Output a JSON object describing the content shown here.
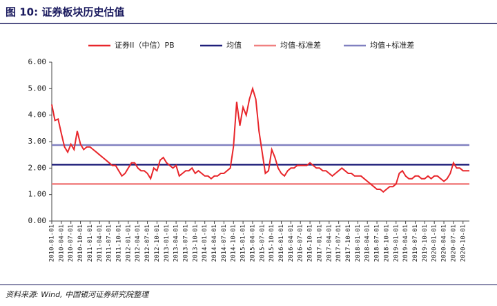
{
  "chart_data": {
    "type": "line",
    "title": "图 10: 证券板块历史估值",
    "source": "资料来源: Wind, 中国银河证券研究院整理",
    "categories": [
      "2010-01-01",
      null,
      null,
      "2010-04-01",
      null,
      null,
      "2010-07-01",
      null,
      null,
      "2010-10-01",
      null,
      null,
      "2011-01-01",
      null,
      null,
      "2011-04-01",
      null,
      null,
      "2011-07-01",
      null,
      null,
      "2011-10-01",
      null,
      null,
      "2012-01-01",
      null,
      null,
      "2012-04-01",
      null,
      null,
      "2012-07-01",
      null,
      null,
      "2012-10-01",
      null,
      null,
      "2013-01-01",
      null,
      null,
      "2013-04-01",
      null,
      null,
      "2013-07-01",
      null,
      null,
      "2013-10-01",
      null,
      null,
      "2014-01-01",
      null,
      null,
      "2014-04-01",
      null,
      null,
      "2014-07-01",
      null,
      null,
      "2014-10-01",
      null,
      null,
      "2015-01-01",
      null,
      null,
      "2015-04-01",
      null,
      null,
      "2015-07-01",
      null,
      null,
      "2015-10-01",
      null,
      null,
      "2016-01-01",
      null,
      null,
      "2016-04-01",
      null,
      null,
      "2016-07-01",
      null,
      null,
      "2016-10-01",
      null,
      null,
      "2017-01-01",
      null,
      null,
      "2017-04-01",
      null,
      null,
      "2017-07-01",
      null,
      null,
      "2017-10-01",
      null,
      null,
      "2018-01-01",
      null,
      null,
      "2018-04-01",
      null,
      null,
      "2018-07-01",
      null,
      null,
      "2018-10-01",
      null,
      null,
      "2019-01-01",
      null,
      null,
      "2019-04-01",
      null,
      null,
      "2019-07-01",
      null,
      null,
      "2019-10-01",
      null,
      null,
      "2020-01-01",
      null,
      null,
      "2020-04-01",
      null,
      null,
      "2020-07-01",
      null,
      null,
      "2020-10-01",
      null,
      null
    ],
    "series": [
      {
        "name": "证券II（中信）PB",
        "color": "#e8262b",
        "values": [
          4.4,
          3.8,
          3.85,
          3.3,
          2.8,
          2.6,
          2.9,
          2.7,
          3.4,
          2.9,
          2.7,
          2.8,
          2.8,
          2.7,
          2.6,
          2.5,
          2.4,
          2.3,
          2.2,
          2.1,
          2.1,
          1.9,
          1.7,
          1.8,
          2.0,
          2.2,
          2.2,
          2.0,
          1.9,
          1.9,
          1.8,
          1.6,
          2.0,
          1.9,
          2.3,
          2.4,
          2.2,
          2.1,
          2.0,
          2.1,
          1.7,
          1.8,
          1.9,
          1.9,
          2.0,
          1.8,
          1.9,
          1.8,
          1.7,
          1.7,
          1.6,
          1.7,
          1.7,
          1.8,
          1.8,
          1.9,
          2.0,
          2.8,
          4.5,
          3.6,
          4.3,
          4.0,
          4.6,
          5.0,
          4.6,
          3.4,
          2.6,
          1.8,
          1.9,
          2.7,
          2.4,
          2.0,
          1.8,
          1.7,
          1.9,
          2.0,
          2.0,
          2.1,
          2.1,
          2.1,
          2.1,
          2.2,
          2.1,
          2.0,
          2.0,
          1.9,
          1.9,
          1.8,
          1.7,
          1.8,
          1.9,
          2.0,
          1.9,
          1.8,
          1.8,
          1.7,
          1.7,
          1.7,
          1.6,
          1.5,
          1.4,
          1.3,
          1.2,
          1.2,
          1.1,
          1.2,
          1.3,
          1.3,
          1.4,
          1.8,
          1.9,
          1.7,
          1.6,
          1.6,
          1.7,
          1.7,
          1.6,
          1.6,
          1.7,
          1.6,
          1.7,
          1.7,
          1.6,
          1.5,
          1.6,
          1.8,
          2.2,
          2.0,
          2.0,
          1.9,
          1.9,
          1.9
        ]
      }
    ],
    "reference_lines": [
      {
        "name": "均值",
        "color": "#1f1f7a",
        "value": 2.13
      },
      {
        "name": "均值-标准差",
        "color": "#f08080",
        "value": 1.4
      },
      {
        "name": "均值+标准差",
        "color": "#8080c0",
        "value": 2.87
      }
    ],
    "ylim": [
      0,
      6
    ],
    "yticks": [
      {
        "value": 0,
        "label": "0.00"
      },
      {
        "value": 1,
        "label": "1.00"
      },
      {
        "value": 2,
        "label": "2.00"
      },
      {
        "value": 3,
        "label": "3.00"
      },
      {
        "value": 4,
        "label": "4.00"
      },
      {
        "value": 5,
        "label": "5.00"
      },
      {
        "value": 6,
        "label": "6.00"
      }
    ]
  }
}
